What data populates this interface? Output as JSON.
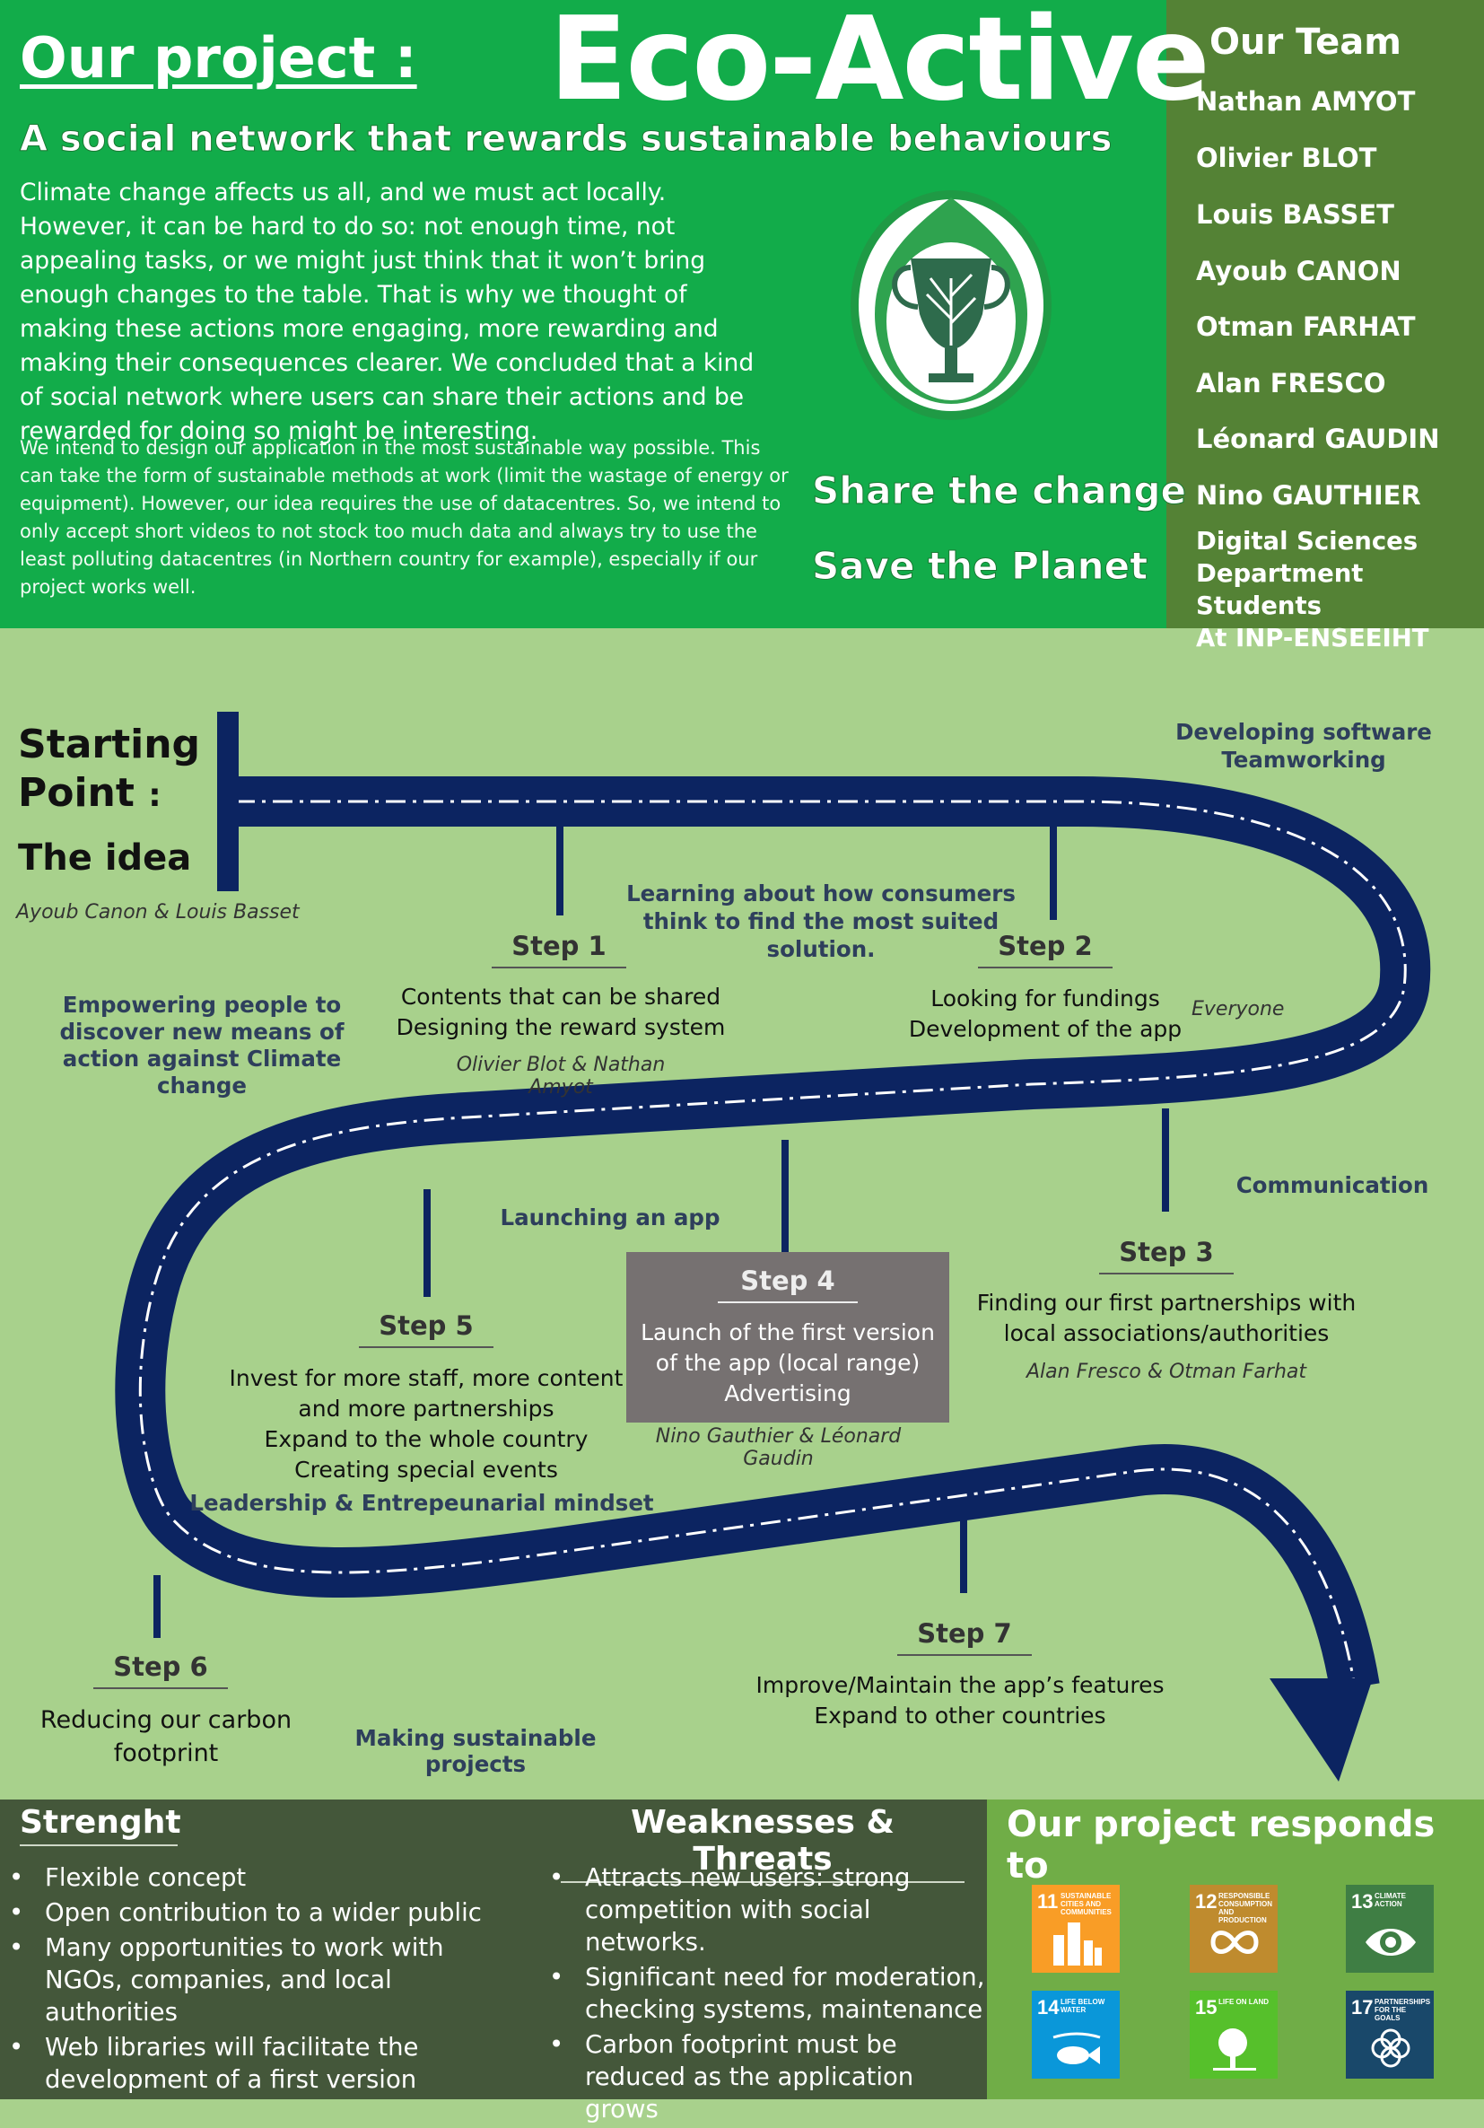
{
  "header": {
    "our_project": "Our project :",
    "app_name": "Eco-Active",
    "tagline": "A social network that rewards sustainable behaviours",
    "intro_paragraph": "Climate change affects us all, and we must act locally.  However, it can be hard to do so: not enough time, not appealing tasks, or we might just think that it won’t bring enough changes to the table. That is why we thought of making these actions more engaging, more rewarding and making their consequences clearer. We concluded that a kind of social network where users can share their actions and be rewarded for doing so might be interesting.",
    "sustainability_paragraph": "We intend to design our application in the most sustainable way possible. This can take the form of sustainable methods at work (limit the wastage of energy or equipment). However, our idea requires the use of datacentres. So, we intend to only accept short videos to not stock too much data and always try to use the least polluting datacentres (in Northern country for example), especially if our project works well.",
    "slogan_1": "Share the change",
    "slogan_2": "Save the Planet"
  },
  "team": {
    "title": "Our Team",
    "members": [
      "Nathan AMYOT",
      "Olivier BLOT",
      "Louis BASSET",
      "Ayoub CANON",
      "Otman FARHAT",
      "Alan FRESCO",
      "Léonard GAUDIN",
      "Nino GAUTHIER"
    ],
    "dept_line1": "Digital Sciences",
    "dept_line2": "Department Students",
    "dept_line3": "At INP-ENSEEIHT"
  },
  "roadmap": {
    "start_line1": "Starting",
    "start_line2": "Point",
    "start_colon": ":",
    "start_idea": "The idea",
    "start_authors": "Ayoub Canon & Louis Basset",
    "empowering": "Empowering people to discover new means of action against Climate change",
    "skill_consumers": "Learning about how consumers think to find the most suited solution.",
    "skill_software": "Developing software Teamworking",
    "everyone": "Everyone",
    "skill_communication": "Communication",
    "skill_launching": "Launching an app",
    "skill_leadership": "Leadership & Entrepeunarial mindset",
    "skill_sustainable": "Making sustainable projects",
    "steps": [
      {
        "title": "Step 1",
        "line1": "Contents that can be shared",
        "line2": "Designing the reward system",
        "authors": "Olivier Blot & Nathan Amyot"
      },
      {
        "title": "Step 2",
        "line1": "Looking for fundings",
        "line2": "Development of the app"
      },
      {
        "title": "Step 3",
        "line1": "Finding our first partnerships with",
        "line2": "local associations/authorities",
        "authors": "Alan Fresco & Otman Farhat"
      },
      {
        "title": "Step 4",
        "line1": "Launch of the first version",
        "line2": "of the app (local range)",
        "line3": "Advertising",
        "authors": "Nino Gauthier & Léonard Gaudin"
      },
      {
        "title": "Step 5",
        "line1": "Invest for more staff, more content",
        "line2": "and more partnerships",
        "line3": "Expand to the whole country",
        "line4": "Creating special events"
      },
      {
        "title": "Step 6",
        "line1": "Reducing our carbon",
        "line2": "footprint"
      },
      {
        "title": "Step 7",
        "line1": "Improve/Maintain the app’s features",
        "line2": "Expand to other countries"
      }
    ]
  },
  "strengths": {
    "title": "Strenght",
    "items": [
      "Flexible concept",
      "Open contribution to a wider public",
      "Many opportunities to work with NGOs, companies, and local authorities",
      "Web libraries will facilitate the development of a first version"
    ]
  },
  "weaknesses": {
    "title": "Weaknesses & Threats",
    "items": [
      "Attracts new users: strong competition with social networks.",
      "Significant need for moderation, checking systems, maintenance",
      "Carbon footprint must be reduced as the application grows"
    ]
  },
  "sdg": {
    "title": "Our project responds to",
    "goals": [
      {
        "num": "11",
        "label": "Sustainable cities and communities",
        "color": "#f99d26",
        "icon": "city-icon"
      },
      {
        "num": "12",
        "label": "Responsible consumption and production",
        "color": "#bf8b2e",
        "icon": "infinity-icon"
      },
      {
        "num": "13",
        "label": "Climate action",
        "color": "#3f7e44",
        "icon": "eye-globe-icon"
      },
      {
        "num": "14",
        "label": "Life below water",
        "color": "#0a97d9",
        "icon": "fish-icon"
      },
      {
        "num": "15",
        "label": "Life on land",
        "color": "#56c02b",
        "icon": "tree-icon"
      },
      {
        "num": "17",
        "label": "Partnerships for the goals",
        "color": "#19486a",
        "icon": "flower-icon"
      }
    ]
  },
  "colors": {
    "header_green": "#12ac4a",
    "team_green": "#548235",
    "background_green": "#a8d18c",
    "road_navy": "#0c2461",
    "bottom_dark": "#44573a",
    "bottom_light": "#70ad47"
  }
}
